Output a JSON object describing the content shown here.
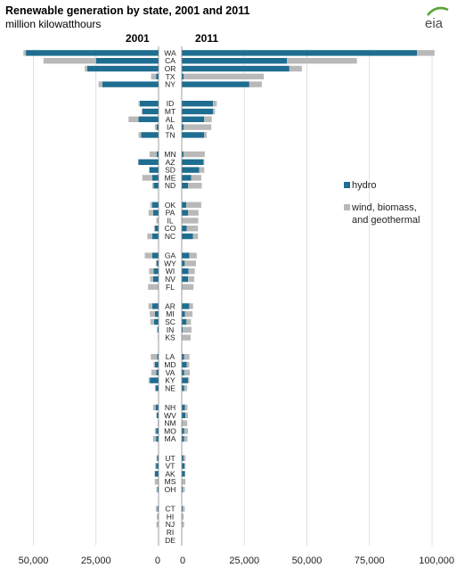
{
  "chart_data": {
    "type": "bar",
    "title": "Renewable generation by state, 2001 and 2011",
    "subtitle": "million kilowatthours",
    "panels": [
      "2001",
      "2011"
    ],
    "series": [
      {
        "name": "hydro",
        "color": "#1f6e91"
      },
      {
        "name": "wind, biomass, and geothermal",
        "color": "#b9b9b9"
      }
    ],
    "logo_text": "eia",
    "xlim": [
      0,
      100000
    ],
    "left_ticks": [
      "50,000",
      "25,000",
      "0"
    ],
    "right_ticks": [
      "0",
      "25,000",
      "50,000",
      "75,000",
      "100,000"
    ],
    "left_tick_values": [
      50000,
      25000,
      0
    ],
    "right_tick_values": [
      0,
      25000,
      50000,
      75000,
      100000
    ],
    "grid": true,
    "legend_position": "right",
    "groups": [
      [
        {
          "state": "WA",
          "hydro2001": 53000,
          "other2001": 1000,
          "hydro2011": 94000,
          "other2011": 7000
        },
        {
          "state": "CA",
          "hydro2001": 25000,
          "other2001": 21000,
          "hydro2011": 42000,
          "other2011": 28000
        },
        {
          "state": "OR",
          "hydro2001": 28500,
          "other2001": 1000,
          "hydro2011": 43000,
          "other2011": 5000
        },
        {
          "state": "TX",
          "hydro2001": 1000,
          "other2001": 2000,
          "hydro2011": 800,
          "other2011": 32000
        },
        {
          "state": "NY",
          "hydro2001": 22500,
          "other2001": 1500,
          "hydro2011": 27000,
          "other2011": 5000
        }
      ],
      [
        {
          "state": "ID",
          "hydro2001": 7500,
          "other2001": 500,
          "hydro2011": 12500,
          "other2011": 1500
        },
        {
          "state": "MT",
          "hydro2001": 6500,
          "other2001": 300,
          "hydro2011": 12500,
          "other2011": 800
        },
        {
          "state": "AL",
          "hydro2001": 8000,
          "other2001": 4000,
          "hydro2011": 9000,
          "other2011": 3000
        },
        {
          "state": "IA",
          "hydro2001": 800,
          "other2001": 700,
          "hydro2011": 800,
          "other2011": 11000
        },
        {
          "state": "TN",
          "hydro2001": 7000,
          "other2001": 1000,
          "hydro2011": 9000,
          "other2011": 1000
        }
      ],
      [
        {
          "state": "MN",
          "hydro2001": 800,
          "other2001": 2800,
          "hydro2011": 700,
          "other2011": 8500
        },
        {
          "state": "AZ",
          "hydro2001": 8000,
          "other2001": 200,
          "hydro2011": 8700,
          "other2011": 300
        },
        {
          "state": "SD",
          "hydro2001": 3600,
          "other2001": 300,
          "hydro2011": 7000,
          "other2011": 2000
        },
        {
          "state": "ME",
          "hydro2001": 2500,
          "other2001": 4000,
          "hydro2011": 3800,
          "other2011": 4000
        },
        {
          "state": "ND",
          "hydro2001": 2000,
          "other2001": 500,
          "hydro2011": 2500,
          "other2011": 5500
        }
      ],
      [
        {
          "state": "OK",
          "hydro2001": 2500,
          "other2001": 800,
          "hydro2011": 1800,
          "other2011": 6000
        },
        {
          "state": "PA",
          "hydro2001": 2200,
          "other2001": 1800,
          "hydro2011": 2500,
          "other2011": 4200
        },
        {
          "state": "IL",
          "hydro2001": 100,
          "other2001": 800,
          "hydro2011": 100,
          "other2011": 6500
        },
        {
          "state": "CO",
          "hydro2001": 1500,
          "other2001": 300,
          "hydro2011": 2000,
          "other2011": 4500
        },
        {
          "state": "NC",
          "hydro2001": 2500,
          "other2001": 2000,
          "hydro2011": 4500,
          "other2011": 2000
        }
      ],
      [
        {
          "state": "GA",
          "hydro2001": 2500,
          "other2001": 3000,
          "hydro2011": 3000,
          "other2011": 3000
        },
        {
          "state": "WY",
          "hydro2001": 800,
          "other2001": 300,
          "hydro2011": 1200,
          "other2011": 4500
        },
        {
          "state": "WI",
          "hydro2001": 2000,
          "other2001": 1800,
          "hydro2011": 2700,
          "other2011": 2500
        },
        {
          "state": "NV",
          "hydro2001": 2200,
          "other2001": 1200,
          "hydro2011": 2500,
          "other2011": 2500
        },
        {
          "state": "FL",
          "hydro2001": 200,
          "other2001": 4000,
          "hydro2011": 200,
          "other2011": 4500
        }
      ],
      [
        {
          "state": "AR",
          "hydro2001": 2500,
          "other2001": 1500,
          "hydro2011": 3000,
          "other2011": 1500
        },
        {
          "state": "MI",
          "hydro2001": 1500,
          "other2001": 2000,
          "hydro2011": 1300,
          "other2011": 3000
        },
        {
          "state": "SC",
          "hydro2001": 1800,
          "other2001": 1500,
          "hydro2011": 1900,
          "other2011": 1800
        },
        {
          "state": "IN",
          "hydro2001": 400,
          "other2001": 300,
          "hydro2011": 400,
          "other2011": 3500
        },
        {
          "state": "KS",
          "hydro2001": 50,
          "other2001": 200,
          "hydro2011": 50,
          "other2011": 3500
        }
      ],
      [
        {
          "state": "LA",
          "hydro2001": 600,
          "other2001": 2500,
          "hydro2011": 900,
          "other2011": 2200
        },
        {
          "state": "MD",
          "hydro2001": 1500,
          "other2001": 500,
          "hydro2011": 2000,
          "other2011": 1000
        },
        {
          "state": "VA",
          "hydro2001": 900,
          "other2001": 2000,
          "hydro2011": 1000,
          "other2011": 2200
        },
        {
          "state": "KY",
          "hydro2001": 3500,
          "other2001": 500,
          "hydro2011": 2500,
          "other2011": 500
        },
        {
          "state": "NE",
          "hydro2001": 1200,
          "other2001": 200,
          "hydro2011": 1000,
          "other2011": 1200
        }
      ],
      [
        {
          "state": "NH",
          "hydro2001": 1200,
          "other2001": 1000,
          "hydro2011": 1300,
          "other2011": 1000
        },
        {
          "state": "WV",
          "hydro2001": 800,
          "other2001": 100,
          "hydro2011": 1500,
          "other2011": 1000
        },
        {
          "state": "NM",
          "hydro2001": 200,
          "other2001": 100,
          "hydro2011": 200,
          "other2011": 2000
        },
        {
          "state": "MO",
          "hydro2001": 1000,
          "other2001": 500,
          "hydro2011": 1000,
          "other2011": 1500
        },
        {
          "state": "MA",
          "hydro2001": 1000,
          "other2001": 1200,
          "hydro2011": 900,
          "other2011": 1400
        }
      ],
      [
        {
          "state": "UT",
          "hydro2001": 600,
          "other2001": 200,
          "hydro2011": 700,
          "other2011": 800
        },
        {
          "state": "VT",
          "hydro2001": 1000,
          "other2001": 400,
          "hydro2011": 1100,
          "other2011": 400
        },
        {
          "state": "AK",
          "hydro2001": 1500,
          "other2001": 50,
          "hydro2011": 1300,
          "other2011": 50
        },
        {
          "state": "MS",
          "hydro2001": 0,
          "other2001": 1500,
          "hydro2011": 0,
          "other2011": 1500
        },
        {
          "state": "OH",
          "hydro2001": 400,
          "other2001": 500,
          "hydro2011": 400,
          "other2011": 800
        }
      ],
      [
        {
          "state": "CT",
          "hydro2001": 400,
          "other2001": 700,
          "hydro2011": 400,
          "other2011": 800
        },
        {
          "state": "HI",
          "hydro2001": 100,
          "other2001": 600,
          "hydro2011": 100,
          "other2011": 700
        },
        {
          "state": "NJ",
          "hydro2001": 50,
          "other2001": 800,
          "hydro2011": 50,
          "other2011": 900
        },
        {
          "state": "RI",
          "hydro2001": 10,
          "other2001": 100,
          "hydro2011": 10,
          "other2011": 150
        },
        {
          "state": "DE",
          "hydro2001": 0,
          "other2001": 50,
          "hydro2011": 0,
          "other2011": 150
        }
      ]
    ]
  }
}
